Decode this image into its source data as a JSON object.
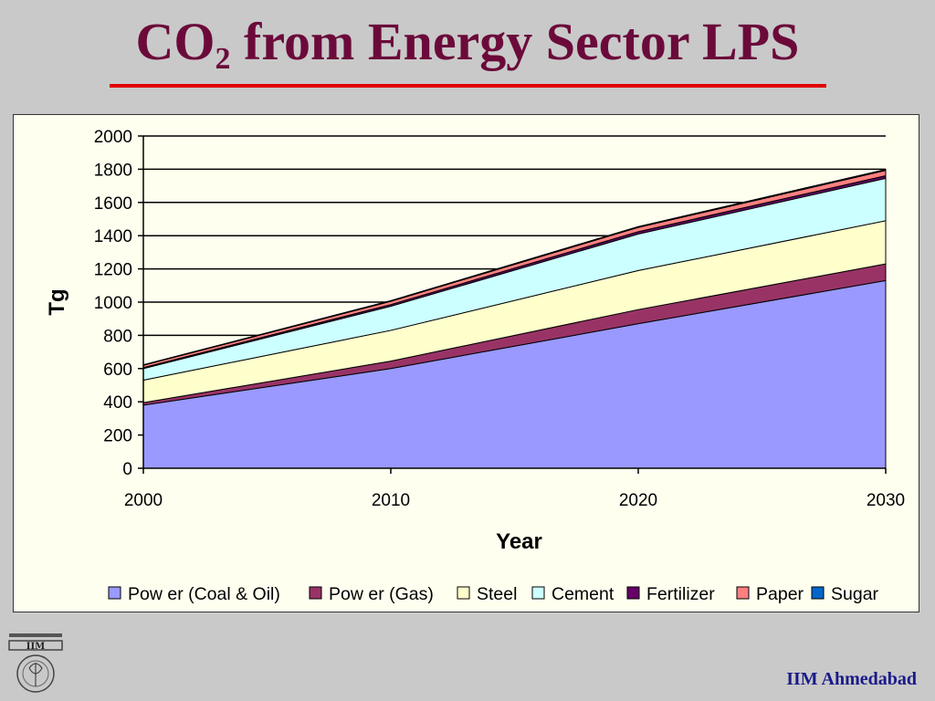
{
  "slide": {
    "title_main": "CO",
    "title_sub": "2",
    "title_rest": " from Energy Sector LPS",
    "footer": "IIM Ahmedabad",
    "logo_text": "IIM"
  },
  "colors": {
    "title": "#6b0a3a",
    "underline": "#e00000",
    "chart_background": "#fffff0"
  },
  "chart_data": {
    "type": "area",
    "stacked": true,
    "x": [
      2000,
      2010,
      2020,
      2030
    ],
    "xlabel": "Year",
    "ylabel": "Tg",
    "ylim": [
      0,
      2000
    ],
    "yticks": [
      0,
      200,
      400,
      600,
      800,
      1000,
      1200,
      1400,
      1600,
      1800,
      2000
    ],
    "grid": true,
    "legend_position": "bottom",
    "series": [
      {
        "name": "Pow er (Coal & Oil)",
        "color": "#9999ff",
        "values": [
          380,
          600,
          870,
          1130
        ]
      },
      {
        "name": "Pow er (Gas)",
        "color": "#993366",
        "values": [
          15,
          45,
          85,
          100
        ]
      },
      {
        "name": "Steel",
        "color": "#ffffcc",
        "values": [
          135,
          185,
          235,
          260
        ]
      },
      {
        "name": "Cement",
        "color": "#ccffff",
        "values": [
          70,
          145,
          220,
          255
        ]
      },
      {
        "name": "Fertilizer",
        "color": "#660066",
        "values": [
          6,
          10,
          14,
          16
        ]
      },
      {
        "name": "Paper",
        "color": "#ff8080",
        "values": [
          14,
          20,
          26,
          32
        ]
      },
      {
        "name": "Sugar",
        "color": "#0066cc",
        "values": [
          3,
          4,
          5,
          6
        ]
      }
    ]
  }
}
